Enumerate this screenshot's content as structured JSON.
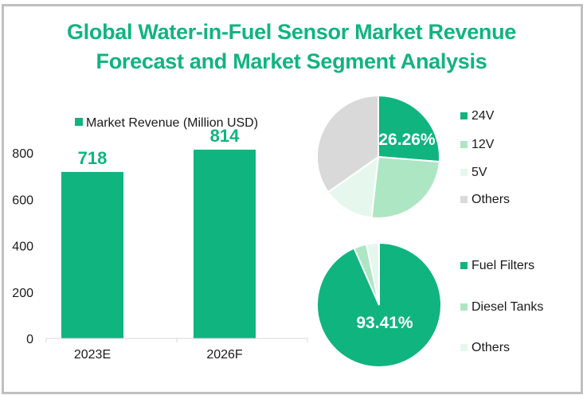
{
  "title": {
    "line1": "Global Water-in-Fuel Sensor Market Revenue",
    "line2": "Forecast and Market Segment Analysis"
  },
  "colors": {
    "primary": "#10b47f",
    "light": "#ade6c3",
    "lighter": "#e6f8ee",
    "gray": "#d9d9d9",
    "title": "#10b47f"
  },
  "chart_data": [
    {
      "type": "bar",
      "title": "",
      "legend": "Market Revenue (Million USD)",
      "legend_position": "top",
      "categories": [
        "2023E",
        "2026F"
      ],
      "values": [
        718,
        814
      ],
      "data_labels": [
        "718",
        "814"
      ],
      "xlabel": "",
      "ylabel": "",
      "ylim": [
        0,
        800
      ],
      "yticks": [
        "0",
        "200",
        "400",
        "600",
        "800"
      ],
      "grid": false
    },
    {
      "type": "pie",
      "title": "",
      "legend_position": "right",
      "categories": [
        "24V",
        "12V",
        "5V",
        "Others"
      ],
      "values": [
        26.26,
        25.5,
        13.5,
        34.74
      ],
      "data_labels": [
        "26.26%",
        "",
        "",
        ""
      ],
      "colors": [
        "#10b47f",
        "#ade6c3",
        "#e6f8ee",
        "#d9d9d9"
      ]
    },
    {
      "type": "pie",
      "title": "",
      "legend_position": "right",
      "categories": [
        "Fuel Filters",
        "Diesel Tanks",
        "Others"
      ],
      "values": [
        93.41,
        3.3,
        3.29
      ],
      "data_labels": [
        "93.41%",
        "",
        ""
      ],
      "colors": [
        "#10b47f",
        "#ade6c3",
        "#e6f8ee"
      ]
    }
  ]
}
